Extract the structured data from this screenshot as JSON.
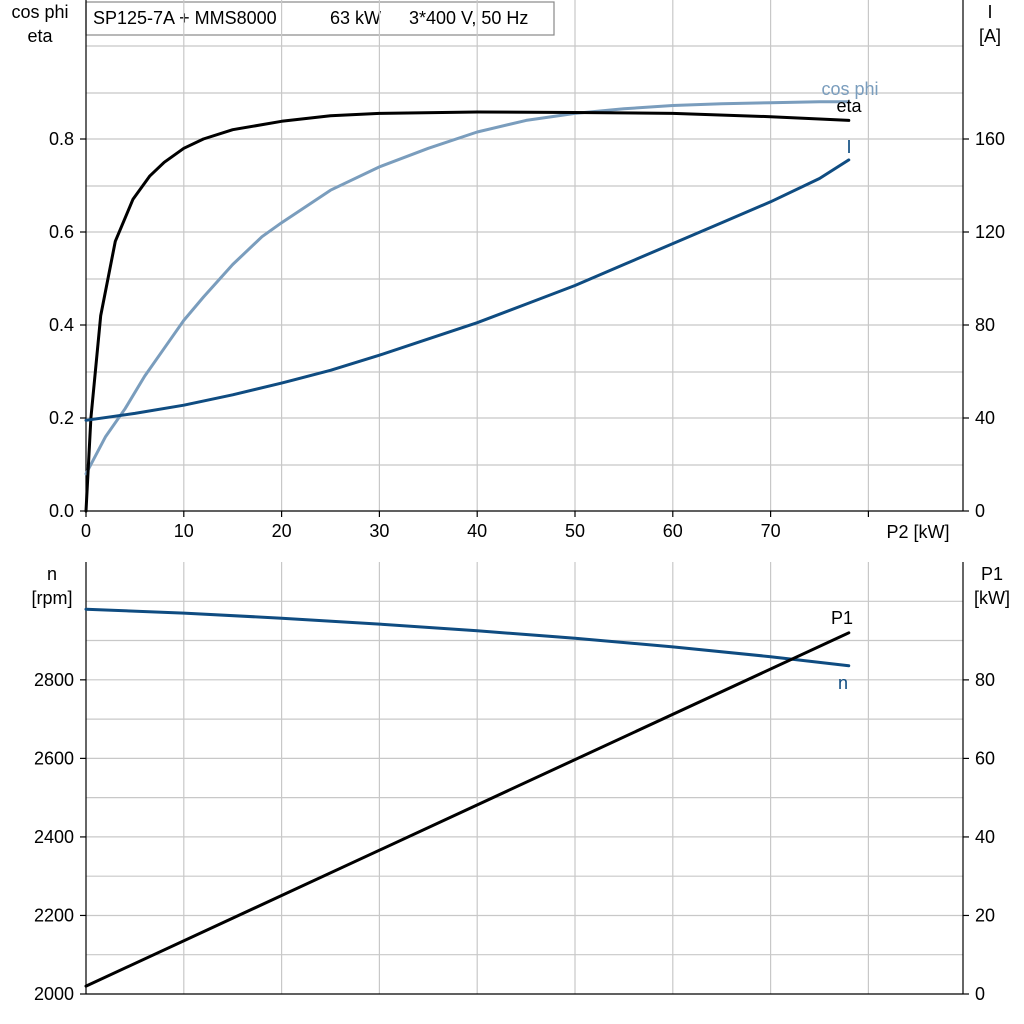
{
  "header": {
    "model": "SP125-7A + MMS8000",
    "power": "63 kW",
    "supply": "3*400 V, 50 Hz"
  },
  "chart_data": [
    {
      "type": "line",
      "id": "upper",
      "xlabel": "P2 [kW]",
      "xlim": [
        0,
        80
      ],
      "x_ticks": [
        "0",
        "10",
        "20",
        "30",
        "40",
        "50",
        "60",
        "70"
      ],
      "ylabel_left": [
        "cos phi",
        "eta"
      ],
      "ylim_left": [
        0,
        1.0
      ],
      "y_ticks_left": [
        "0.0",
        "0.2",
        "0.4",
        "0.6",
        "0.8"
      ],
      "ylabel_right": [
        "I",
        "[A]"
      ],
      "ylim_right": [
        0,
        200
      ],
      "y_ticks_right": [
        "0",
        "40",
        "80",
        "120",
        "160"
      ],
      "grid": true,
      "series": [
        {
          "name": "cos phi",
          "axis": "left",
          "color": "#7a9dbd",
          "x": [
            0,
            2,
            4,
            6,
            8,
            10,
            12,
            15,
            18,
            20,
            25,
            30,
            35,
            40,
            45,
            50,
            55,
            60,
            65,
            70,
            75,
            78
          ],
          "y": [
            0.08,
            0.16,
            0.22,
            0.29,
            0.35,
            0.41,
            0.46,
            0.53,
            0.59,
            0.62,
            0.69,
            0.74,
            0.78,
            0.815,
            0.84,
            0.855,
            0.865,
            0.872,
            0.876,
            0.878,
            0.88,
            0.88
          ]
        },
        {
          "name": "eta",
          "axis": "left",
          "color": "#000000",
          "x": [
            0,
            0.5,
            1.5,
            3,
            4.8,
            6.5,
            8,
            10,
            12,
            15,
            20,
            25,
            30,
            40,
            50,
            60,
            70,
            75,
            78
          ],
          "y": [
            0.0,
            0.2,
            0.42,
            0.58,
            0.67,
            0.72,
            0.75,
            0.78,
            0.8,
            0.82,
            0.838,
            0.85,
            0.855,
            0.858,
            0.857,
            0.855,
            0.848,
            0.843,
            0.84
          ]
        },
        {
          "name": "I",
          "axis": "right",
          "color": "#0f4c81",
          "x": [
            0,
            5,
            10,
            15,
            20,
            25,
            30,
            35,
            40,
            45,
            50,
            55,
            60,
            65,
            70,
            75,
            78
          ],
          "y": [
            39,
            42,
            45.5,
            50,
            55,
            60.5,
            67,
            74,
            81,
            89,
            97,
            106,
            115,
            124,
            133,
            143,
            151
          ]
        }
      ]
    },
    {
      "type": "line",
      "id": "lower",
      "xlim": [
        0,
        80
      ],
      "ylabel_left": [
        "n",
        "[rpm]"
      ],
      "ylim_left": [
        2000,
        3030
      ],
      "y_ticks_left": [
        "2000",
        "2200",
        "2400",
        "2600",
        "2800"
      ],
      "ylabel_right": [
        "P1",
        "[kW]"
      ],
      "ylim_right": [
        0,
        103
      ],
      "y_ticks_right": [
        "0",
        "20",
        "40",
        "60",
        "80"
      ],
      "grid": true,
      "series": [
        {
          "name": "n",
          "axis": "left",
          "color": "#0f4c81",
          "x": [
            0,
            10,
            20,
            30,
            40,
            50,
            60,
            70,
            78
          ],
          "y": [
            2980,
            2970,
            2957,
            2942,
            2925,
            2906,
            2884,
            2859,
            2836
          ]
        },
        {
          "name": "P1",
          "axis": "right",
          "color": "#000000",
          "x": [
            0,
            78
          ],
          "y": [
            2,
            92
          ]
        }
      ]
    }
  ]
}
